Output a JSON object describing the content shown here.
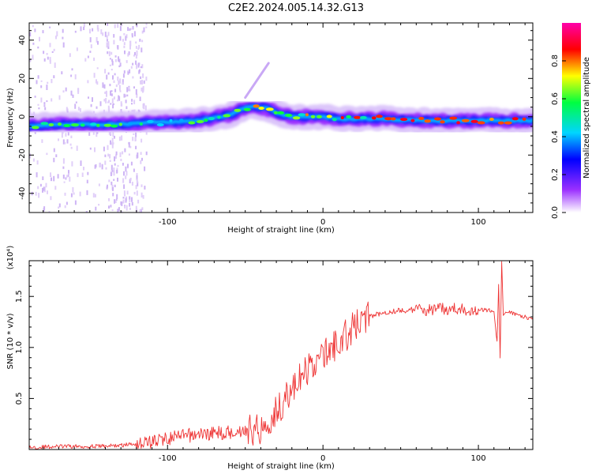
{
  "title": "C2E2.2024.005.14.32.G13",
  "chart_data": [
    {
      "type": "heatmap",
      "xlabel": "Height of straight line (km)",
      "ylabel": "Frequency (Hz)",
      "xlim": [
        -189,
        135
      ],
      "ylim": [
        -50,
        49
      ],
      "xticks": [
        -100,
        0,
        100
      ],
      "yticks": [
        -40,
        -20,
        0,
        20,
        40
      ],
      "colorbar": {
        "label": "Normalized spectral amplitude",
        "range": [
          0,
          1
        ],
        "ticks": [
          0.0,
          0.2,
          0.4,
          0.6,
          0.8
        ],
        "tick_labels": [
          "0.0",
          "0.2",
          "0.4",
          "0.6",
          "0.8"
        ],
        "colors": [
          "#ffffff",
          "#9b30ff",
          "#0000ff",
          "#00d5ff",
          "#00ff40",
          "#ffff00",
          "#ff0000",
          "#ff00aa"
        ]
      },
      "ridge": {
        "x": [
          -189,
          -170,
          -150,
          -130,
          -110,
          -100,
          -80,
          -60,
          -50,
          -40,
          -35,
          -30,
          -20,
          -10,
          0,
          10,
          20,
          40,
          60,
          80,
          100,
          120,
          135
        ],
        "y": [
          -5,
          -4,
          -4,
          -4,
          -3,
          -3,
          -2,
          1,
          5,
          5,
          4,
          2,
          0,
          0,
          0,
          -1,
          -1,
          -1,
          -2,
          -2,
          -2,
          -2,
          -2
        ]
      },
      "feature": {
        "x": [
          -50,
          -35
        ],
        "y": [
          10,
          28
        ]
      }
    },
    {
      "type": "line",
      "xlabel": "Height of straight line (km)",
      "ylabel": "SNR (10 * v/v)",
      "y_scale_label": "(x10⁴)",
      "xlim": [
        -189,
        135
      ],
      "ylim": [
        0,
        1.85
      ],
      "xticks": [
        -100,
        0,
        100
      ],
      "xtick_labels": [
        "-100",
        "0",
        "100"
      ],
      "yticks": [
        0.5,
        1.0,
        1.5
      ],
      "ytick_labels": [
        "0.5",
        "1.0",
        "1.5"
      ],
      "series": [
        {
          "name": "SNR",
          "color": "#ee3333",
          "x": [
            -189,
            -170,
            -150,
            -130,
            -120,
            -110,
            -100,
            -90,
            -80,
            -70,
            -60,
            -50,
            -40,
            -35,
            -30,
            -25,
            -20,
            -15,
            -10,
            -5,
            0,
            5,
            10,
            15,
            20,
            25,
            30,
            40,
            50,
            60,
            70,
            80,
            90,
            100,
            110,
            112,
            113,
            114,
            115,
            116,
            118,
            120,
            130,
            135
          ],
          "values": [
            0.02,
            0.03,
            0.03,
            0.04,
            0.06,
            0.08,
            0.11,
            0.13,
            0.15,
            0.16,
            0.17,
            0.19,
            0.2,
            0.28,
            0.38,
            0.48,
            0.58,
            0.68,
            0.78,
            0.85,
            0.92,
            0.98,
            1.05,
            1.12,
            1.2,
            1.27,
            1.31,
            1.35,
            1.36,
            1.37,
            1.37,
            1.38,
            1.37,
            1.37,
            1.36,
            1.05,
            1.6,
            0.88,
            1.85,
            1.32,
            1.33,
            1.34,
            1.3,
            1.28
          ]
        }
      ]
    }
  ]
}
